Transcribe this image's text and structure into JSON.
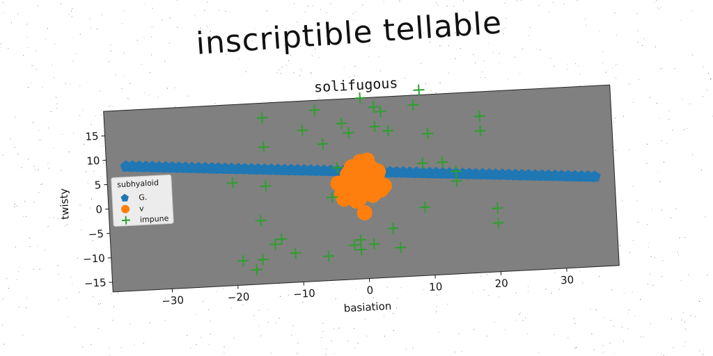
{
  "colors": {
    "background": "#ffffff",
    "plot_bg": "#808080",
    "series": [
      "#1f77b4",
      "#ff7f0e",
      "#2ca02c"
    ]
  },
  "chart_data": {
    "type": "scatter",
    "title": "inscriptible tellable",
    "subtitle": "solifugous",
    "xlabel": "basiation",
    "ylabel": "twisty",
    "xlim": [
      -39,
      38
    ],
    "ylim": [
      -17,
      20
    ],
    "xticks": [
      "−30",
      "−20",
      "−10",
      "0",
      "10",
      "20",
      "30"
    ],
    "xtick_values": [
      -30,
      -20,
      -10,
      0,
      10,
      20,
      30
    ],
    "yticks": [
      "−15",
      "−10",
      "−5",
      "0",
      "5",
      "10",
      "15"
    ],
    "ytick_values": [
      -15,
      -10,
      -5,
      0,
      5,
      10,
      15
    ],
    "grid": false,
    "rotation_deg": -3,
    "legend": {
      "title": "subhyaloid",
      "placement": "center-left",
      "entries": [
        "G.",
        "v",
        "impune"
      ]
    },
    "series": [
      {
        "name": "G.",
        "marker": "pentagon",
        "color": "#1f77b4",
        "x": [
          -36,
          -35,
          -34,
          -33,
          -32,
          -31,
          -30,
          -29,
          -28,
          -27,
          -26,
          -25,
          -24,
          -23,
          -22,
          -21,
          -20,
          -19,
          -18,
          -17,
          -16,
          -15,
          -14,
          -13,
          -12,
          -11,
          -10,
          -9,
          -8,
          -7,
          -6,
          -5,
          -4,
          -3,
          -2,
          -1,
          0,
          1,
          2,
          3,
          4,
          5,
          6,
          7,
          8,
          9,
          10,
          11,
          12,
          13,
          14,
          15,
          16,
          17,
          18,
          19,
          20,
          21,
          22,
          23,
          24,
          25,
          26,
          27,
          28,
          29,
          30,
          31,
          32,
          33,
          34,
          35
        ],
        "y": [
          8.5,
          8.4,
          8.3,
          8.2,
          8.1,
          8.0,
          7.9,
          7.8,
          7.7,
          7.6,
          7.5,
          7.4,
          7.3,
          7.2,
          7.1,
          7.0,
          6.9,
          6.8,
          6.7,
          6.6,
          6.5,
          6.4,
          6.3,
          6.2,
          6.1,
          6.0,
          5.9,
          5.8,
          5.7,
          5.6,
          5.5,
          5.4,
          5.3,
          5.2,
          5.1,
          5.0,
          4.9,
          4.8,
          4.7,
          4.6,
          4.5,
          4.4,
          4.3,
          4.2,
          4.1,
          4.0,
          3.9,
          3.8,
          3.7,
          3.6,
          3.5,
          3.4,
          3.3,
          3.2,
          3.1,
          3.0,
          2.9,
          2.8,
          2.7,
          2.6,
          2.5,
          2.4,
          2.3,
          2.2,
          2.1,
          2.0,
          1.9,
          1.8,
          1.7,
          1.6,
          1.5,
          1.4
        ]
      },
      {
        "name": "v",
        "marker": "circle",
        "color": "#ff7f0e",
        "x": [
          -0.5,
          0.2,
          -1.5,
          1.0,
          -2.5,
          2.0,
          -1.0,
          0.8,
          -3.0,
          1.5,
          -0.3,
          0.5,
          -2.0,
          2.5,
          -1.2,
          0.0,
          -3.5,
          1.2,
          -0.8,
          2.2,
          -1.8,
          0.6,
          -2.8,
          1.8,
          0.3,
          -0.6,
          -4.0,
          -3.2,
          0.4,
          3.0,
          -0.2,
          -1.4,
          1.6,
          -2.2,
          0.9
        ],
        "y": [
          7.0,
          6.5,
          5.5,
          5.8,
          4.5,
          4.0,
          3.5,
          3.0,
          3.0,
          2.5,
          2.0,
          2.0,
          1.5,
          1.0,
          1.0,
          0.5,
          0.5,
          0.0,
          -0.5,
          4.8,
          6.0,
          7.2,
          2.2,
          5.0,
          1.5,
          4.2,
          2.8,
          -0.5,
          3.8,
          1.8,
          -3.5,
          -1.0,
          0.5,
          5.0,
          3.2
        ]
      },
      {
        "name": "impune",
        "marker": "plus",
        "color": "#2ca02c",
        "x": [
          -15,
          -15,
          -15,
          -20,
          -16,
          -19,
          -17,
          -16,
          -14,
          -13,
          -11,
          -9,
          -7,
          -6,
          -6,
          -5,
          -4,
          -3,
          -2,
          -2,
          -1,
          -1,
          0,
          1,
          2,
          2,
          3,
          4,
          4,
          5,
          8,
          9,
          9,
          9,
          10,
          12,
          14,
          14,
          18,
          18,
          20,
          20
        ],
        "y": [
          17,
          11,
          3,
          4,
          -4,
          -12,
          -14,
          -12,
          -9,
          -8,
          -11,
          14,
          18,
          11,
          -12,
          0,
          6,
          15,
          13,
          -10,
          -9,
          -11,
          20,
          -10,
          18,
          14,
          17,
          -7,
          13,
          -11,
          18,
          21,
          6,
          -3,
          12,
          6,
          2,
          4,
          15,
          12,
          -4,
          -7
        ]
      }
    ]
  }
}
